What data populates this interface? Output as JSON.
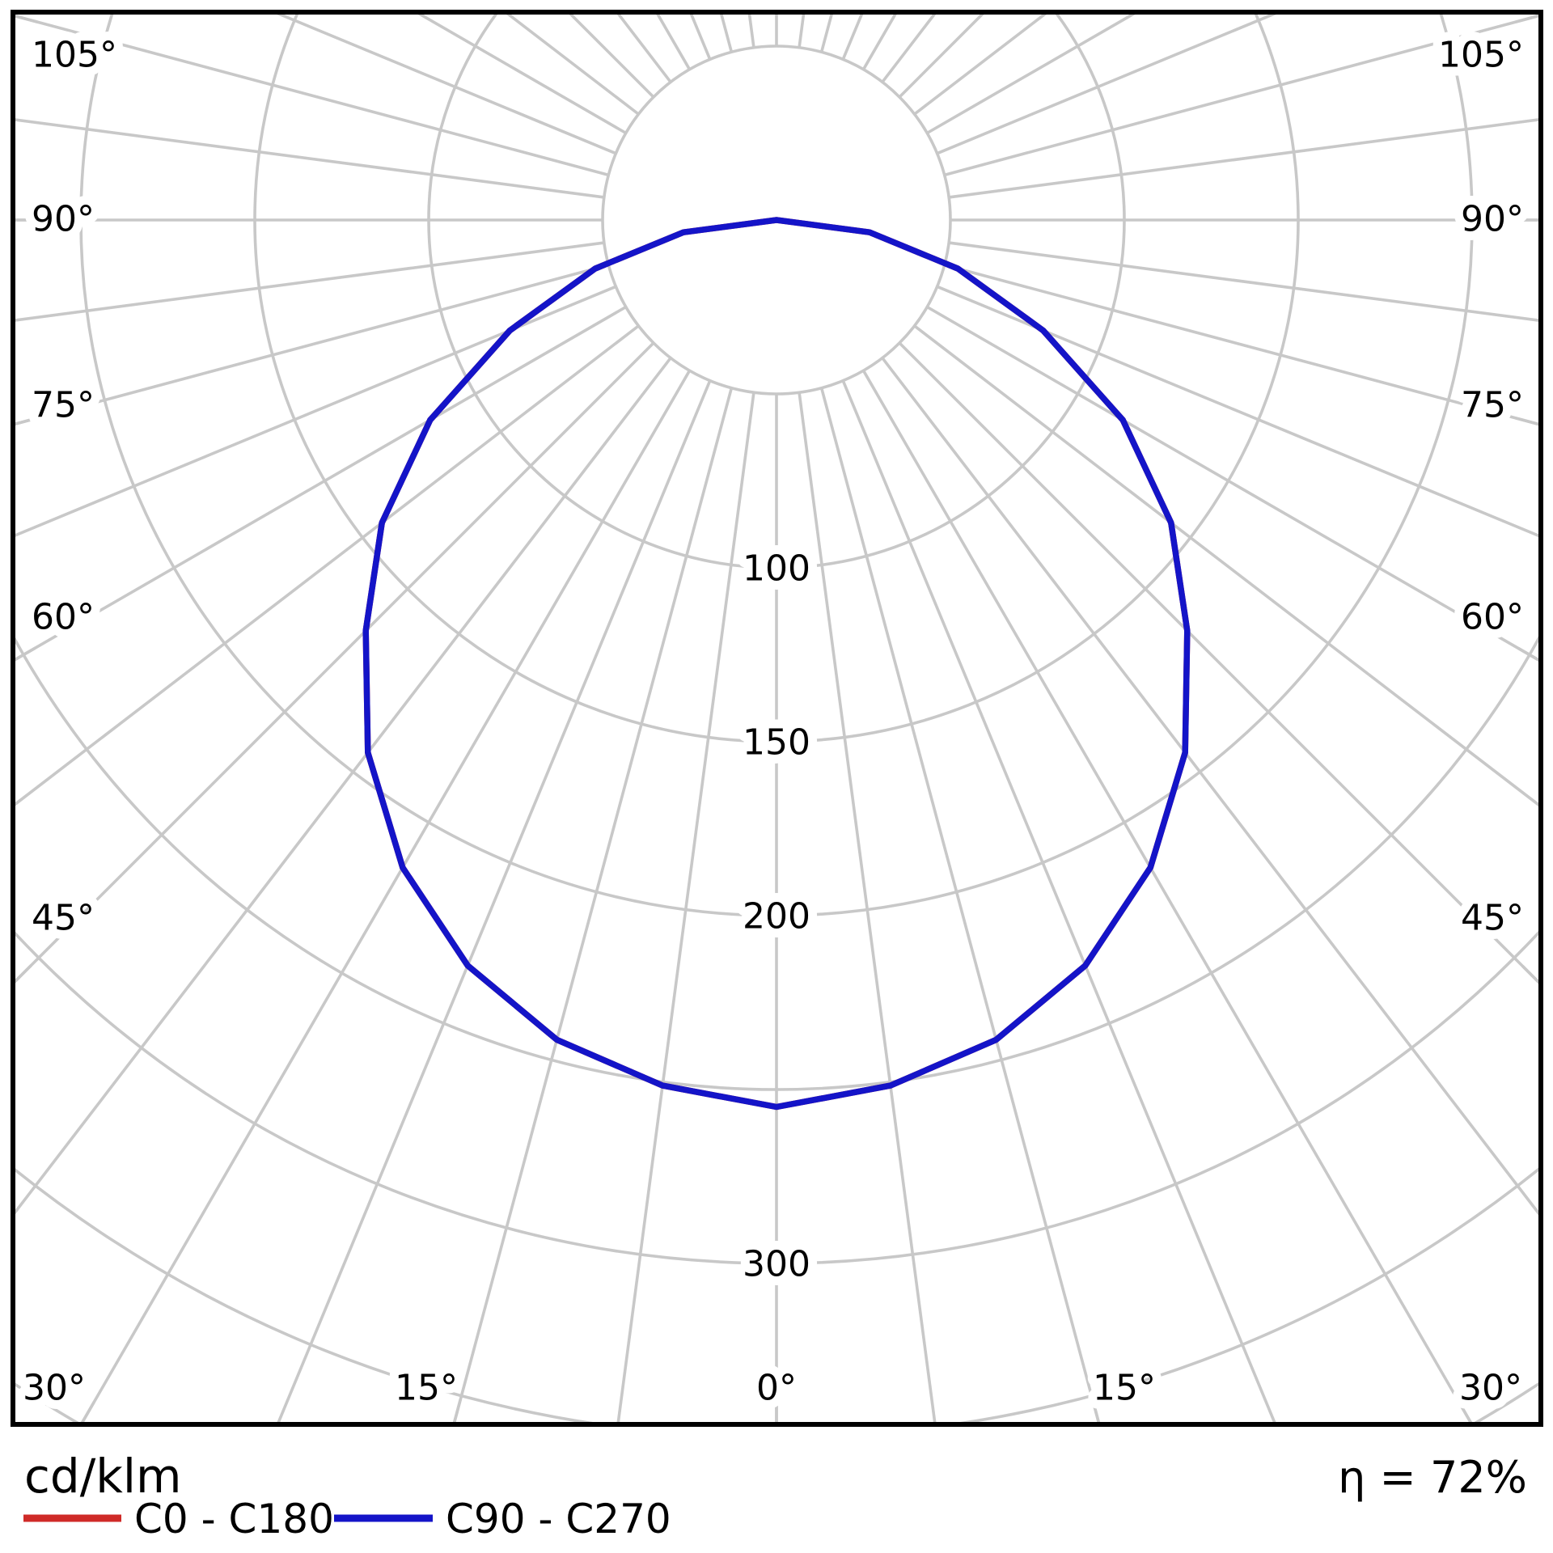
{
  "chart_data": {
    "type": "polar_photometric",
    "title": "",
    "units_label": "cd/klm",
    "efficiency": "η = 72%",
    "angle_step_deg": 7.5,
    "radial_gridlines_cdklm": [
      50,
      100,
      150,
      200,
      250,
      300,
      350,
      400
    ],
    "radial_tick_labels": [
      "100",
      "150",
      "200",
      "300"
    ],
    "radial_tick_values": [
      100,
      150,
      200,
      300
    ],
    "angle_labels": {
      "left": [
        "105°",
        "90°",
        "75°",
        "60°",
        "45°"
      ],
      "right": [
        "105°",
        "90°",
        "75°",
        "60°",
        "45°"
      ],
      "bottom": [
        "30°",
        "15°",
        "0°",
        "15°",
        "30°"
      ]
    },
    "legend_position": "bottom-left",
    "grid": true,
    "rlim": [
      0,
      400
    ],
    "legend": [
      {
        "name": "C0 - C180",
        "color": "#cf2a27"
      },
      {
        "name": "C90 - C270",
        "color": "#1414c8"
      }
    ],
    "series": [
      {
        "name": "C0 - C180",
        "color": "#cf2a27",
        "angles_deg": [
          -90,
          -82.5,
          -75,
          -67.5,
          -60,
          -52.5,
          -45,
          -37.5,
          -30,
          -22.5,
          -15,
          -7.5,
          0,
          7.5,
          15,
          22.5,
          30,
          37.5,
          45,
          52.5,
          60,
          67.5,
          75,
          82.5,
          90
        ],
        "values_cdklm": [
          0,
          27,
          54,
          83,
          115,
          143,
          167,
          193,
          215,
          232,
          244,
          251,
          255,
          251,
          244,
          232,
          215,
          193,
          167,
          143,
          115,
          83,
          54,
          27,
          0
        ]
      },
      {
        "name": "C90 - C270",
        "color": "#1414c8",
        "angles_deg": [
          -90,
          -82.5,
          -75,
          -67.5,
          -60,
          -52.5,
          -45,
          -37.5,
          -30,
          -22.5,
          -15,
          -7.5,
          0,
          7.5,
          15,
          22.5,
          30,
          37.5,
          45,
          52.5,
          60,
          67.5,
          75,
          82.5,
          90
        ],
        "values_cdklm": [
          0,
          27,
          54,
          83,
          115,
          143,
          167,
          193,
          215,
          232,
          244,
          251,
          255,
          251,
          244,
          232,
          215,
          193,
          167,
          143,
          115,
          83,
          54,
          27,
          0
        ]
      }
    ]
  },
  "footer": {
    "units": "cd/klm",
    "eta": "η = 72%"
  },
  "colors": {
    "grid": "#c8c8c8",
    "frame": "#000000",
    "background": "#ffffff",
    "curve_c0": "#cf2a27",
    "curve_c90": "#1414c8"
  }
}
